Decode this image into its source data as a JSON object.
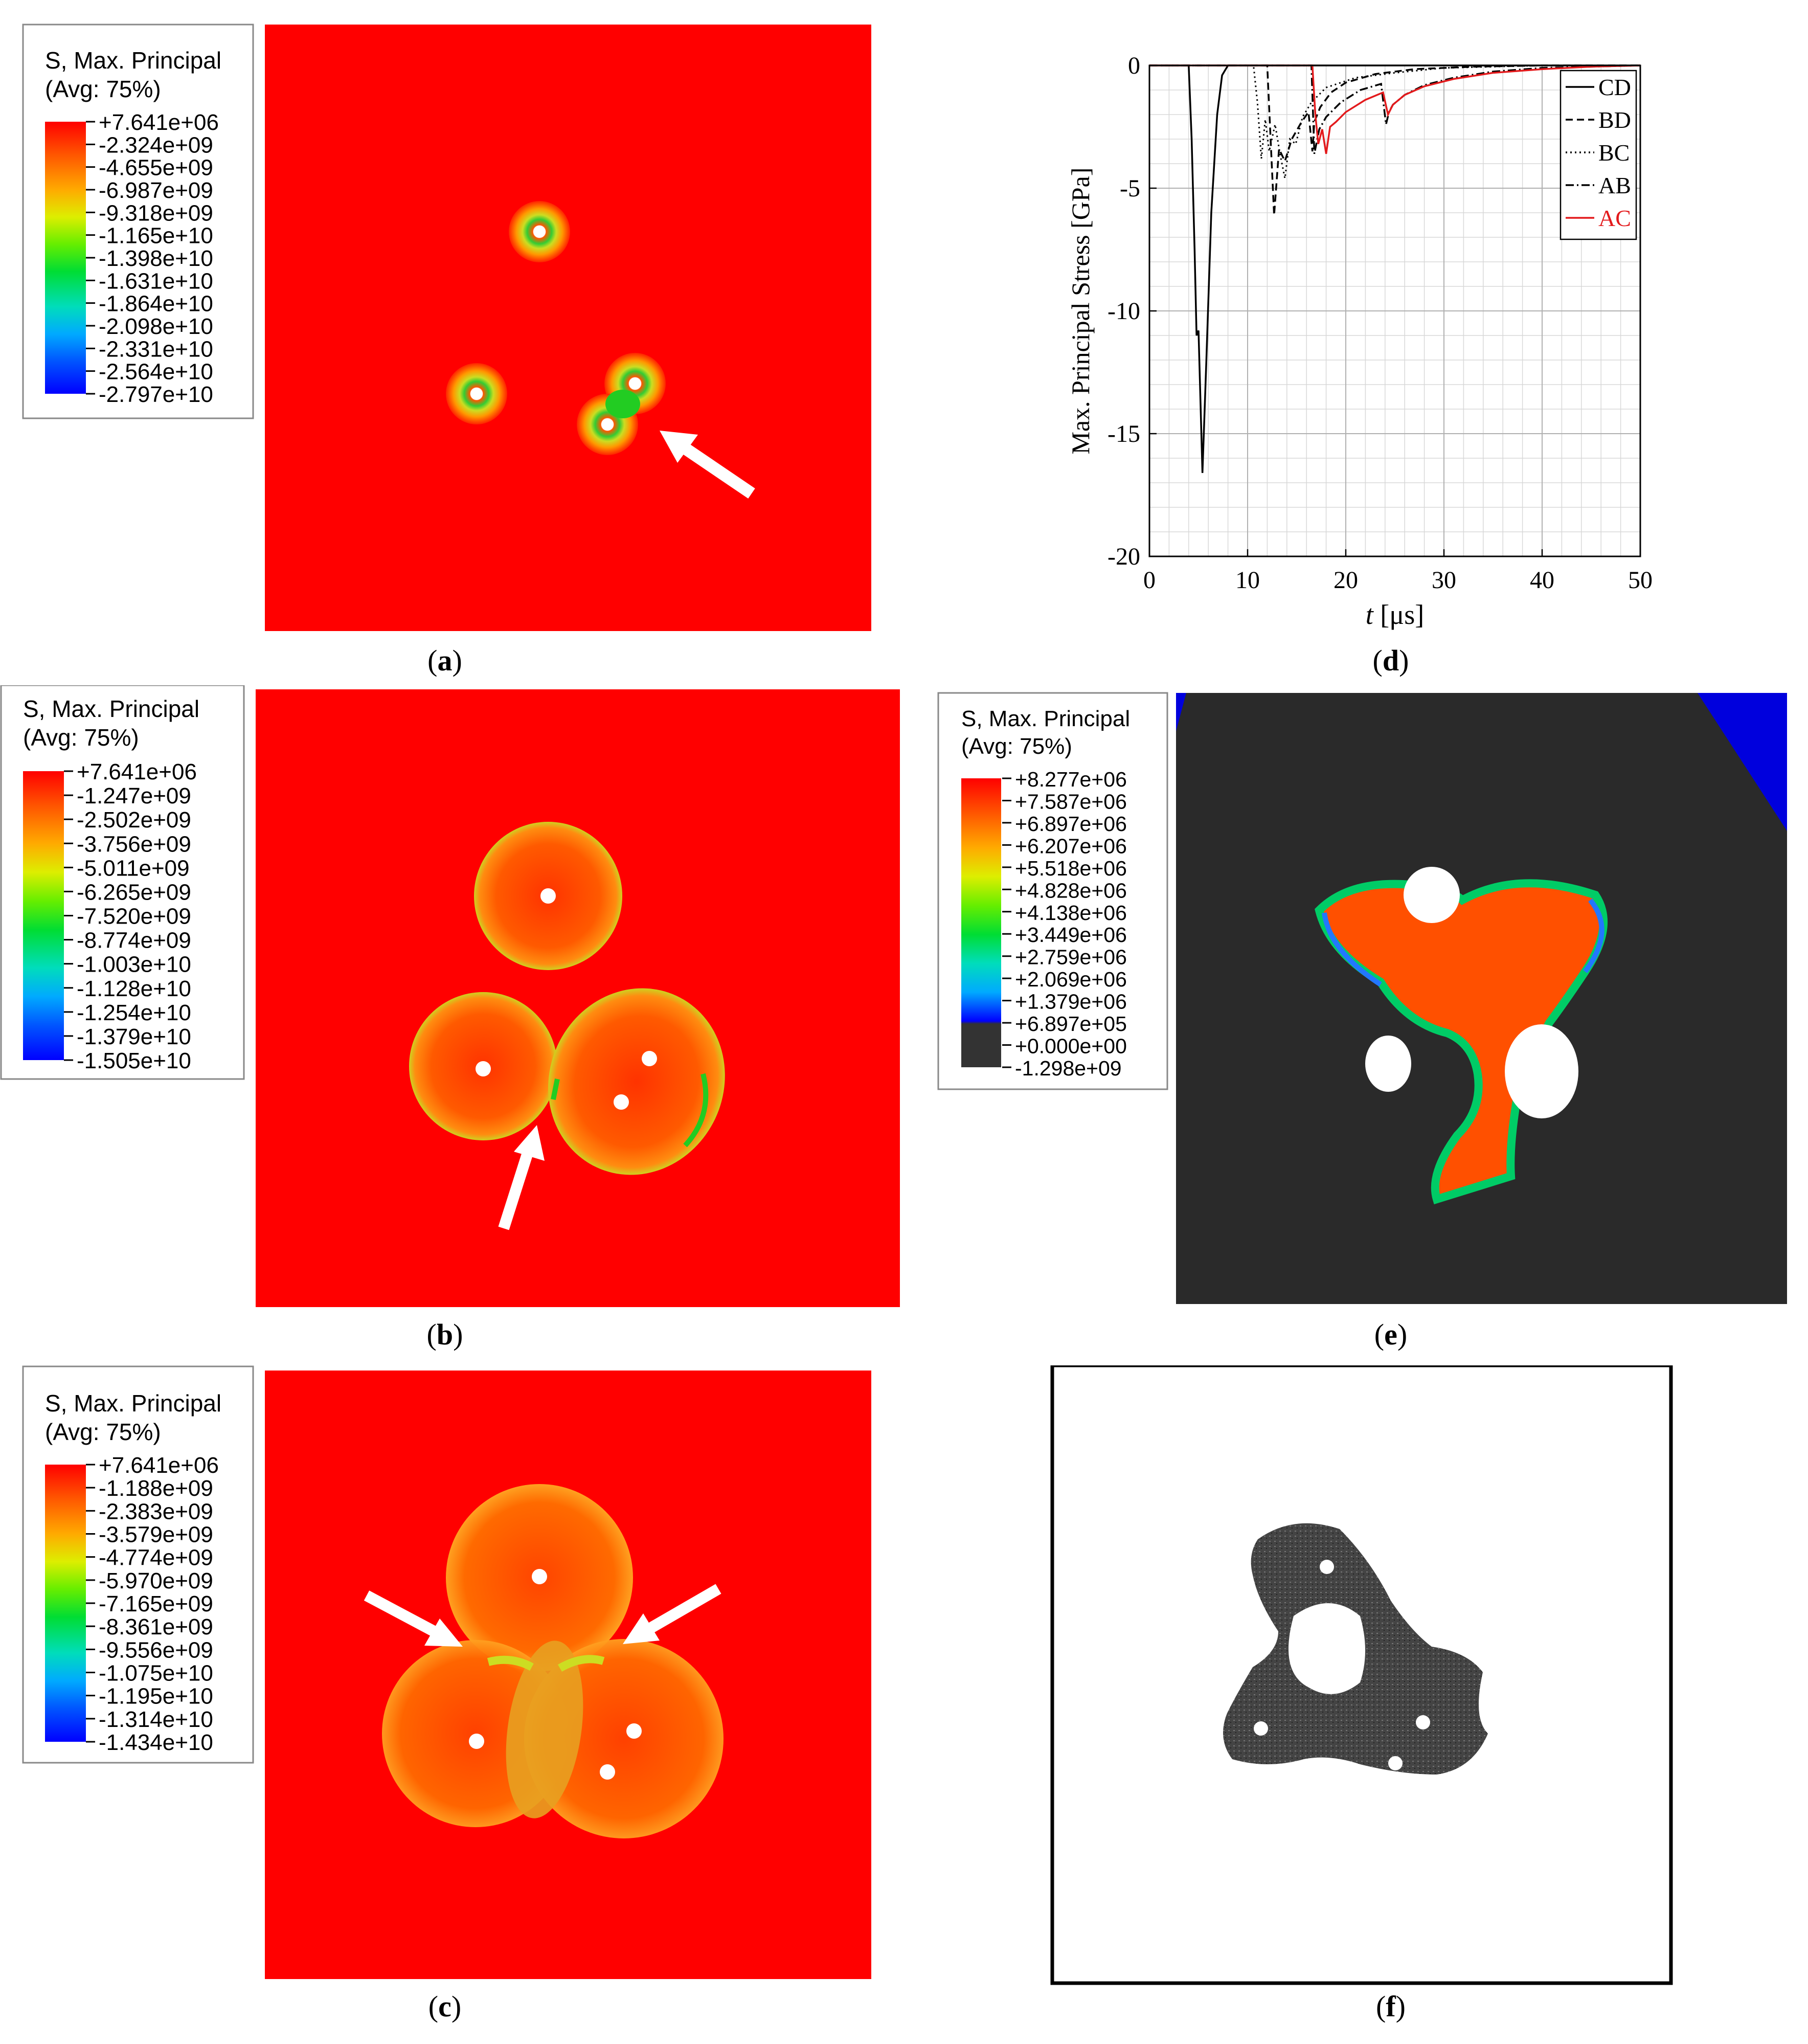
{
  "colors": {
    "field_red": "#ff0000",
    "arrow": "#ffffff",
    "dark_bg": "#2a2a2a",
    "ac_series": "#e31a1c"
  },
  "panels": {
    "a": {
      "label": "a",
      "legend": {
        "title": "S, Max. Principal",
        "subtitle": "(Avg: 75%)",
        "ticks": [
          "+7.641e+06",
          "-2.324e+09",
          "-4.655e+09",
          "-6.987e+09",
          "-9.318e+09",
          "-1.165e+10",
          "-1.398e+10",
          "-1.631e+10",
          "-1.864e+10",
          "-2.098e+10",
          "-2.331e+10",
          "-2.564e+10",
          "-2.797e+10"
        ]
      }
    },
    "b": {
      "label": "b",
      "legend": {
        "title": "S, Max. Principal",
        "subtitle": "(Avg: 75%)",
        "ticks": [
          "+7.641e+06",
          "-1.247e+09",
          "-2.502e+09",
          "-3.756e+09",
          "-5.011e+09",
          "-6.265e+09",
          "-7.520e+09",
          "-8.774e+09",
          "-1.003e+10",
          "-1.128e+10",
          "-1.254e+10",
          "-1.379e+10",
          "-1.505e+10"
        ]
      }
    },
    "c": {
      "label": "c",
      "legend": {
        "title": "S, Max. Principal",
        "subtitle": "(Avg: 75%)",
        "ticks": [
          "+7.641e+06",
          "-1.188e+09",
          "-2.383e+09",
          "-3.579e+09",
          "-4.774e+09",
          "-5.970e+09",
          "-7.165e+09",
          "-8.361e+09",
          "-9.556e+09",
          "-1.075e+10",
          "-1.195e+10",
          "-1.314e+10",
          "-1.434e+10"
        ]
      }
    },
    "d": {
      "label": "d"
    },
    "e": {
      "label": "e",
      "legend": {
        "title": "S, Max. Principal",
        "subtitle": "(Avg: 75%)",
        "ticks": [
          "+8.277e+06",
          "+7.587e+06",
          "+6.897e+06",
          "+6.207e+06",
          "+5.518e+06",
          "+4.828e+06",
          "+4.138e+06",
          "+3.449e+06",
          "+2.759e+06",
          "+2.069e+06",
          "+1.379e+06",
          "+6.897e+05",
          "+0.000e+00",
          "-1.298e+09"
        ]
      }
    },
    "f": {
      "label": "f"
    }
  },
  "chart_data": {
    "type": "line",
    "title": "",
    "xlabel_var": "t",
    "xlabel_unit": "[μs]",
    "ylabel": "Max. Principal Stress [GPa]",
    "xlim": [
      0,
      50
    ],
    "ylim": [
      -20,
      0
    ],
    "xticks": [
      0,
      10,
      20,
      30,
      40,
      50
    ],
    "yticks": [
      0,
      -5,
      -10,
      -15,
      -20
    ],
    "grid": true,
    "minor_grid": true,
    "legend_position": "top-right",
    "series": [
      {
        "name": "CD",
        "style": "solid",
        "color": "#000000",
        "x": [
          0,
          4.0,
          4.3,
          4.6,
          4.8,
          5.0,
          5.4,
          5.8,
          6.3,
          6.9,
          7.4,
          8.0,
          50
        ],
        "y": [
          0,
          0,
          -3.0,
          -7.5,
          -11.0,
          -10.8,
          -16.6,
          -12.0,
          -6.0,
          -2.0,
          -0.4,
          0,
          0
        ]
      },
      {
        "name": "BD",
        "style": "dashed",
        "color": "#000000",
        "x": [
          0,
          12.0,
          12.4,
          12.7,
          13.2,
          13.8,
          14.5,
          15.5,
          16.2,
          16.6,
          16.8,
          17.4,
          18.5,
          20,
          23,
          27,
          33,
          40,
          50
        ],
        "y": [
          0,
          0,
          -3.5,
          -6.1,
          -3.4,
          -3.9,
          -3.0,
          -2.3,
          -1.9,
          -3.5,
          -2.3,
          -1.7,
          -1.1,
          -0.7,
          -0.35,
          -0.15,
          -0.05,
          0,
          0
        ]
      },
      {
        "name": "BC",
        "style": "dotted",
        "color": "#000000",
        "x": [
          0,
          10.6,
          11.0,
          11.4,
          11.8,
          12.2,
          12.8,
          13.3,
          13.8,
          14.3,
          14.9,
          15.6,
          16.5,
          18,
          21,
          25,
          30,
          40,
          50
        ],
        "y": [
          0,
          0,
          -1.5,
          -3.8,
          -2.2,
          -3.5,
          -2.4,
          -3.6,
          -4.6,
          -3.0,
          -3.2,
          -2.1,
          -1.5,
          -0.9,
          -0.5,
          -0.3,
          -0.1,
          0,
          0
        ]
      },
      {
        "name": "AB",
        "style": "dashdot",
        "color": "#000000",
        "x": [
          0,
          16.5,
          16.8,
          17.3,
          18.0,
          19.5,
          21.5,
          23.6,
          24.1,
          24.4,
          24.8,
          26,
          28,
          31,
          35,
          40,
          50
        ],
        "y": [
          0,
          0,
          -3.6,
          -2.6,
          -2.1,
          -1.5,
          -1.0,
          -0.75,
          -2.4,
          -1.9,
          -1.6,
          -1.2,
          -0.8,
          -0.5,
          -0.25,
          -0.1,
          0
        ]
      },
      {
        "name": "AC",
        "style": "solid",
        "color": "#e31a1c",
        "x": [
          0,
          16.6,
          16.9,
          17.2,
          17.6,
          18.0,
          18.4,
          19.0,
          20,
          22,
          23.8,
          24.3,
          24.8,
          26,
          28,
          31,
          35,
          40,
          45,
          50
        ],
        "y": [
          0,
          0,
          -2.0,
          -3.2,
          -2.6,
          -3.6,
          -2.5,
          -2.3,
          -1.9,
          -1.4,
          -1.1,
          -2.0,
          -1.6,
          -1.2,
          -0.85,
          -0.55,
          -0.3,
          -0.15,
          -0.05,
          0
        ]
      }
    ]
  }
}
